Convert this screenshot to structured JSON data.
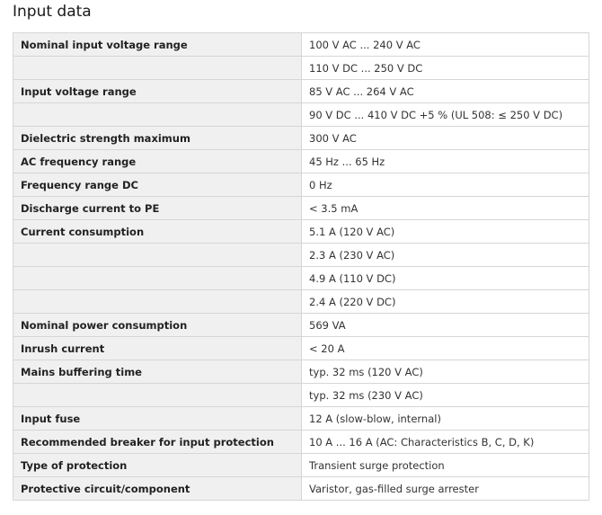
{
  "title": "Input data",
  "rows": [
    {
      "label": "Nominal input voltage range",
      "value": "100 V AC ... 240 V AC"
    },
    {
      "label": "",
      "value": "110 V DC ... 250 V DC"
    },
    {
      "label": "Input voltage range",
      "value": "85 V AC ... 264 V AC"
    },
    {
      "label": "",
      "value": "90 V DC ... 410 V DC +5 % (UL 508: ≤ 250 V DC)"
    },
    {
      "label": "Dielectric strength maximum",
      "value": "300 V AC"
    },
    {
      "label": "AC frequency range",
      "value": "45 Hz ... 65 Hz"
    },
    {
      "label": "Frequency range DC",
      "value": "0 Hz"
    },
    {
      "label": "Discharge current to PE",
      "value": "< 3.5 mA"
    },
    {
      "label": "Current consumption",
      "value": "5.1 A (120 V AC)"
    },
    {
      "label": "",
      "value": "2.3 A (230 V AC)"
    },
    {
      "label": "",
      "value": "4.9 A (110 V DC)"
    },
    {
      "label": "",
      "value": "2.4 A (220 V DC)"
    },
    {
      "label": "Nominal power consumption",
      "value": "569 VA"
    },
    {
      "label": "Inrush current",
      "value": "< 20 A"
    },
    {
      "label": "Mains buffering time",
      "value": "typ. 32 ms (120 V AC)"
    },
    {
      "label": "",
      "value": "typ. 32 ms (230 V AC)"
    },
    {
      "label": "Input fuse",
      "value": "12 A (slow-blow, internal)"
    },
    {
      "label": "Recommended breaker for input protection",
      "value": "10 A ... 16 A (AC: Characteristics B, C, D, K)"
    },
    {
      "label": "Type of protection",
      "value": "Transient surge protection"
    },
    {
      "label": "Protective circuit/component",
      "value": "Varistor, gas-filled surge arrester"
    }
  ]
}
